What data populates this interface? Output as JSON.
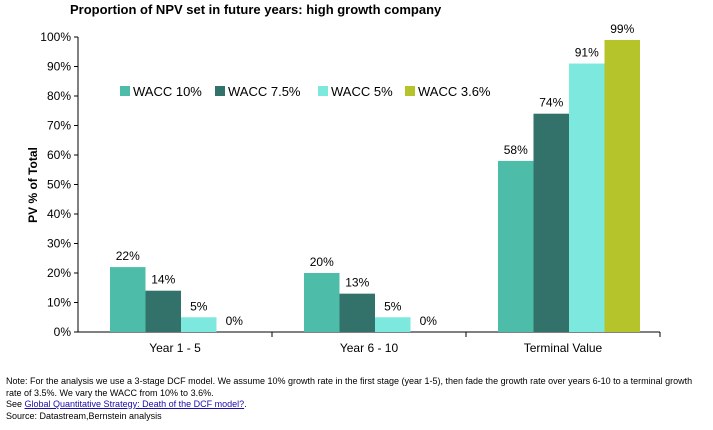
{
  "chart_data": {
    "type": "bar",
    "title": "Proportion of NPV set in future years: high growth company",
    "ylabel": "PV % of Total",
    "xlabel": "",
    "ylim": [
      0,
      100
    ],
    "yticks": [
      "0%",
      "10%",
      "20%",
      "30%",
      "40%",
      "50%",
      "60%",
      "70%",
      "80%",
      "90%",
      "100%"
    ],
    "categories": [
      "Year 1 - 5",
      "Year 6 - 10",
      "Terminal Value"
    ],
    "series": [
      {
        "name": "WACC 10%",
        "values": [
          22,
          20,
          58
        ],
        "labels": [
          "22%",
          "20%",
          "58%"
        ],
        "color": "#4dbdaa"
      },
      {
        "name": "WACC 7.5%",
        "values": [
          14,
          13,
          74
        ],
        "labels": [
          "14%",
          "13%",
          "74%"
        ],
        "color": "#32726b"
      },
      {
        "name": "WACC 5%",
        "values": [
          5,
          5,
          91
        ],
        "labels": [
          "5%",
          "5%",
          "91%"
        ],
        "color": "#7de8de"
      },
      {
        "name": "WACC 3.6%",
        "values": [
          0,
          0,
          99
        ],
        "labels": [
          "0%",
          "0%",
          "99%"
        ],
        "color": "#b4c42a"
      }
    ],
    "legend": "top-left",
    "grid": false
  },
  "footnote": {
    "line1": "Note: For the analysis we use a 3-stage DCF model. We assume 10% growth rate in the first stage (year 1-5), then fade the growth rate over years 6-10 to a terminal growth rate of 3.5%. We vary the WACC from 10% to 3.6%.",
    "see_prefix": "See ",
    "see_link": "Global Quantitative Strategy: Death of the DCF model?",
    "see_suffix": ".",
    "source": "Source: Datastream,Bernstein analysis"
  }
}
